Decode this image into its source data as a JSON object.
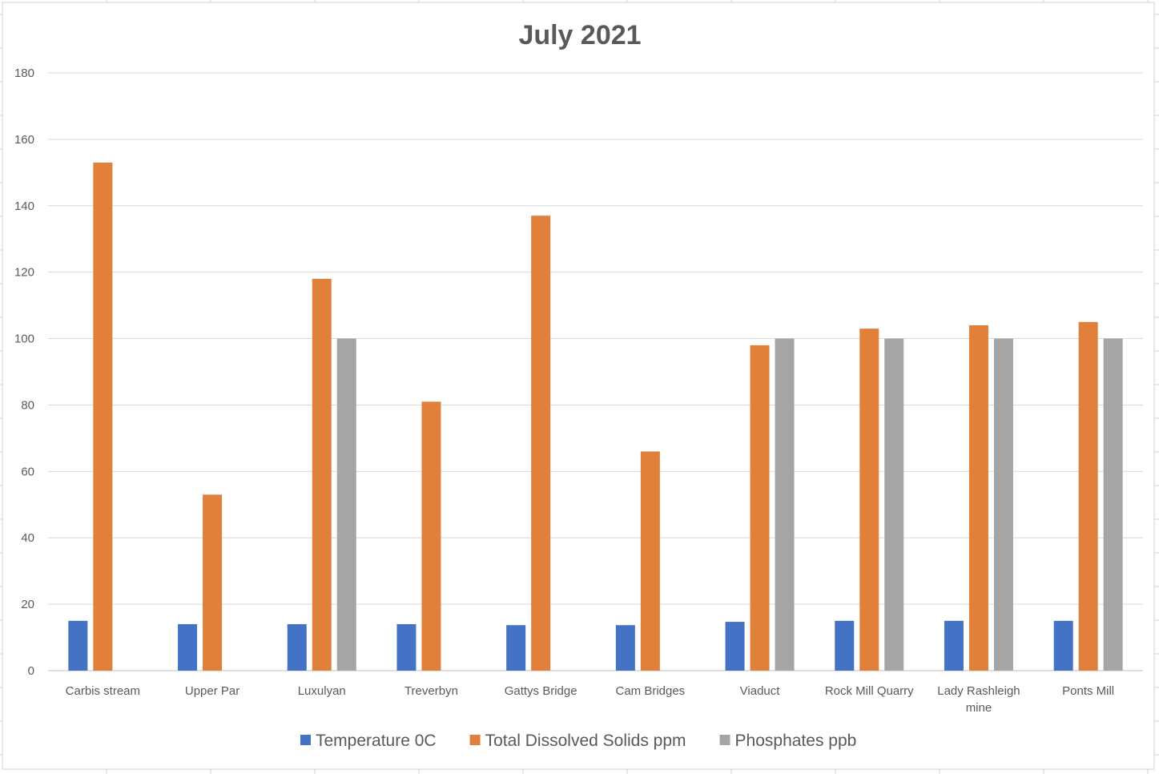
{
  "colors": {
    "temperature": "#4472C4",
    "tds": "#E0803A",
    "phosphates": "#A5A5A5",
    "grid": "#d9d9d9",
    "axis_text": "#595959",
    "title": "#595959"
  },
  "chart_data": {
    "type": "bar",
    "title": "July 2021",
    "xlabel": "",
    "ylabel": "",
    "ylim": [
      0,
      180
    ],
    "yticks": [
      "0",
      "20",
      "40",
      "60",
      "80",
      "100",
      "120",
      "140",
      "160",
      "180"
    ],
    "grid": true,
    "legend_position": "bottom",
    "categories": [
      "Carbis stream",
      "Upper Par",
      "Luxulyan",
      "Treverbyn",
      "Gattys Bridge",
      "Cam Bridges",
      "Viaduct",
      "Rock Mill Quarry",
      "Lady Rashleigh mine",
      "Ponts Mill"
    ],
    "series": [
      {
        "name": "Temperature 0C",
        "color": "#4472C4",
        "values": [
          15,
          14,
          14,
          14,
          13.7,
          13.7,
          14.7,
          15,
          15,
          15
        ]
      },
      {
        "name": "Total Dissolved Solids ppm",
        "color": "#E0803A",
        "values": [
          153,
          53,
          118,
          81,
          137,
          66,
          98,
          103,
          104,
          105
        ]
      },
      {
        "name": "Phosphates ppb",
        "color": "#A5A5A5",
        "values": [
          0,
          0,
          100,
          0,
          0,
          0,
          100,
          100,
          100,
          100
        ]
      }
    ]
  }
}
